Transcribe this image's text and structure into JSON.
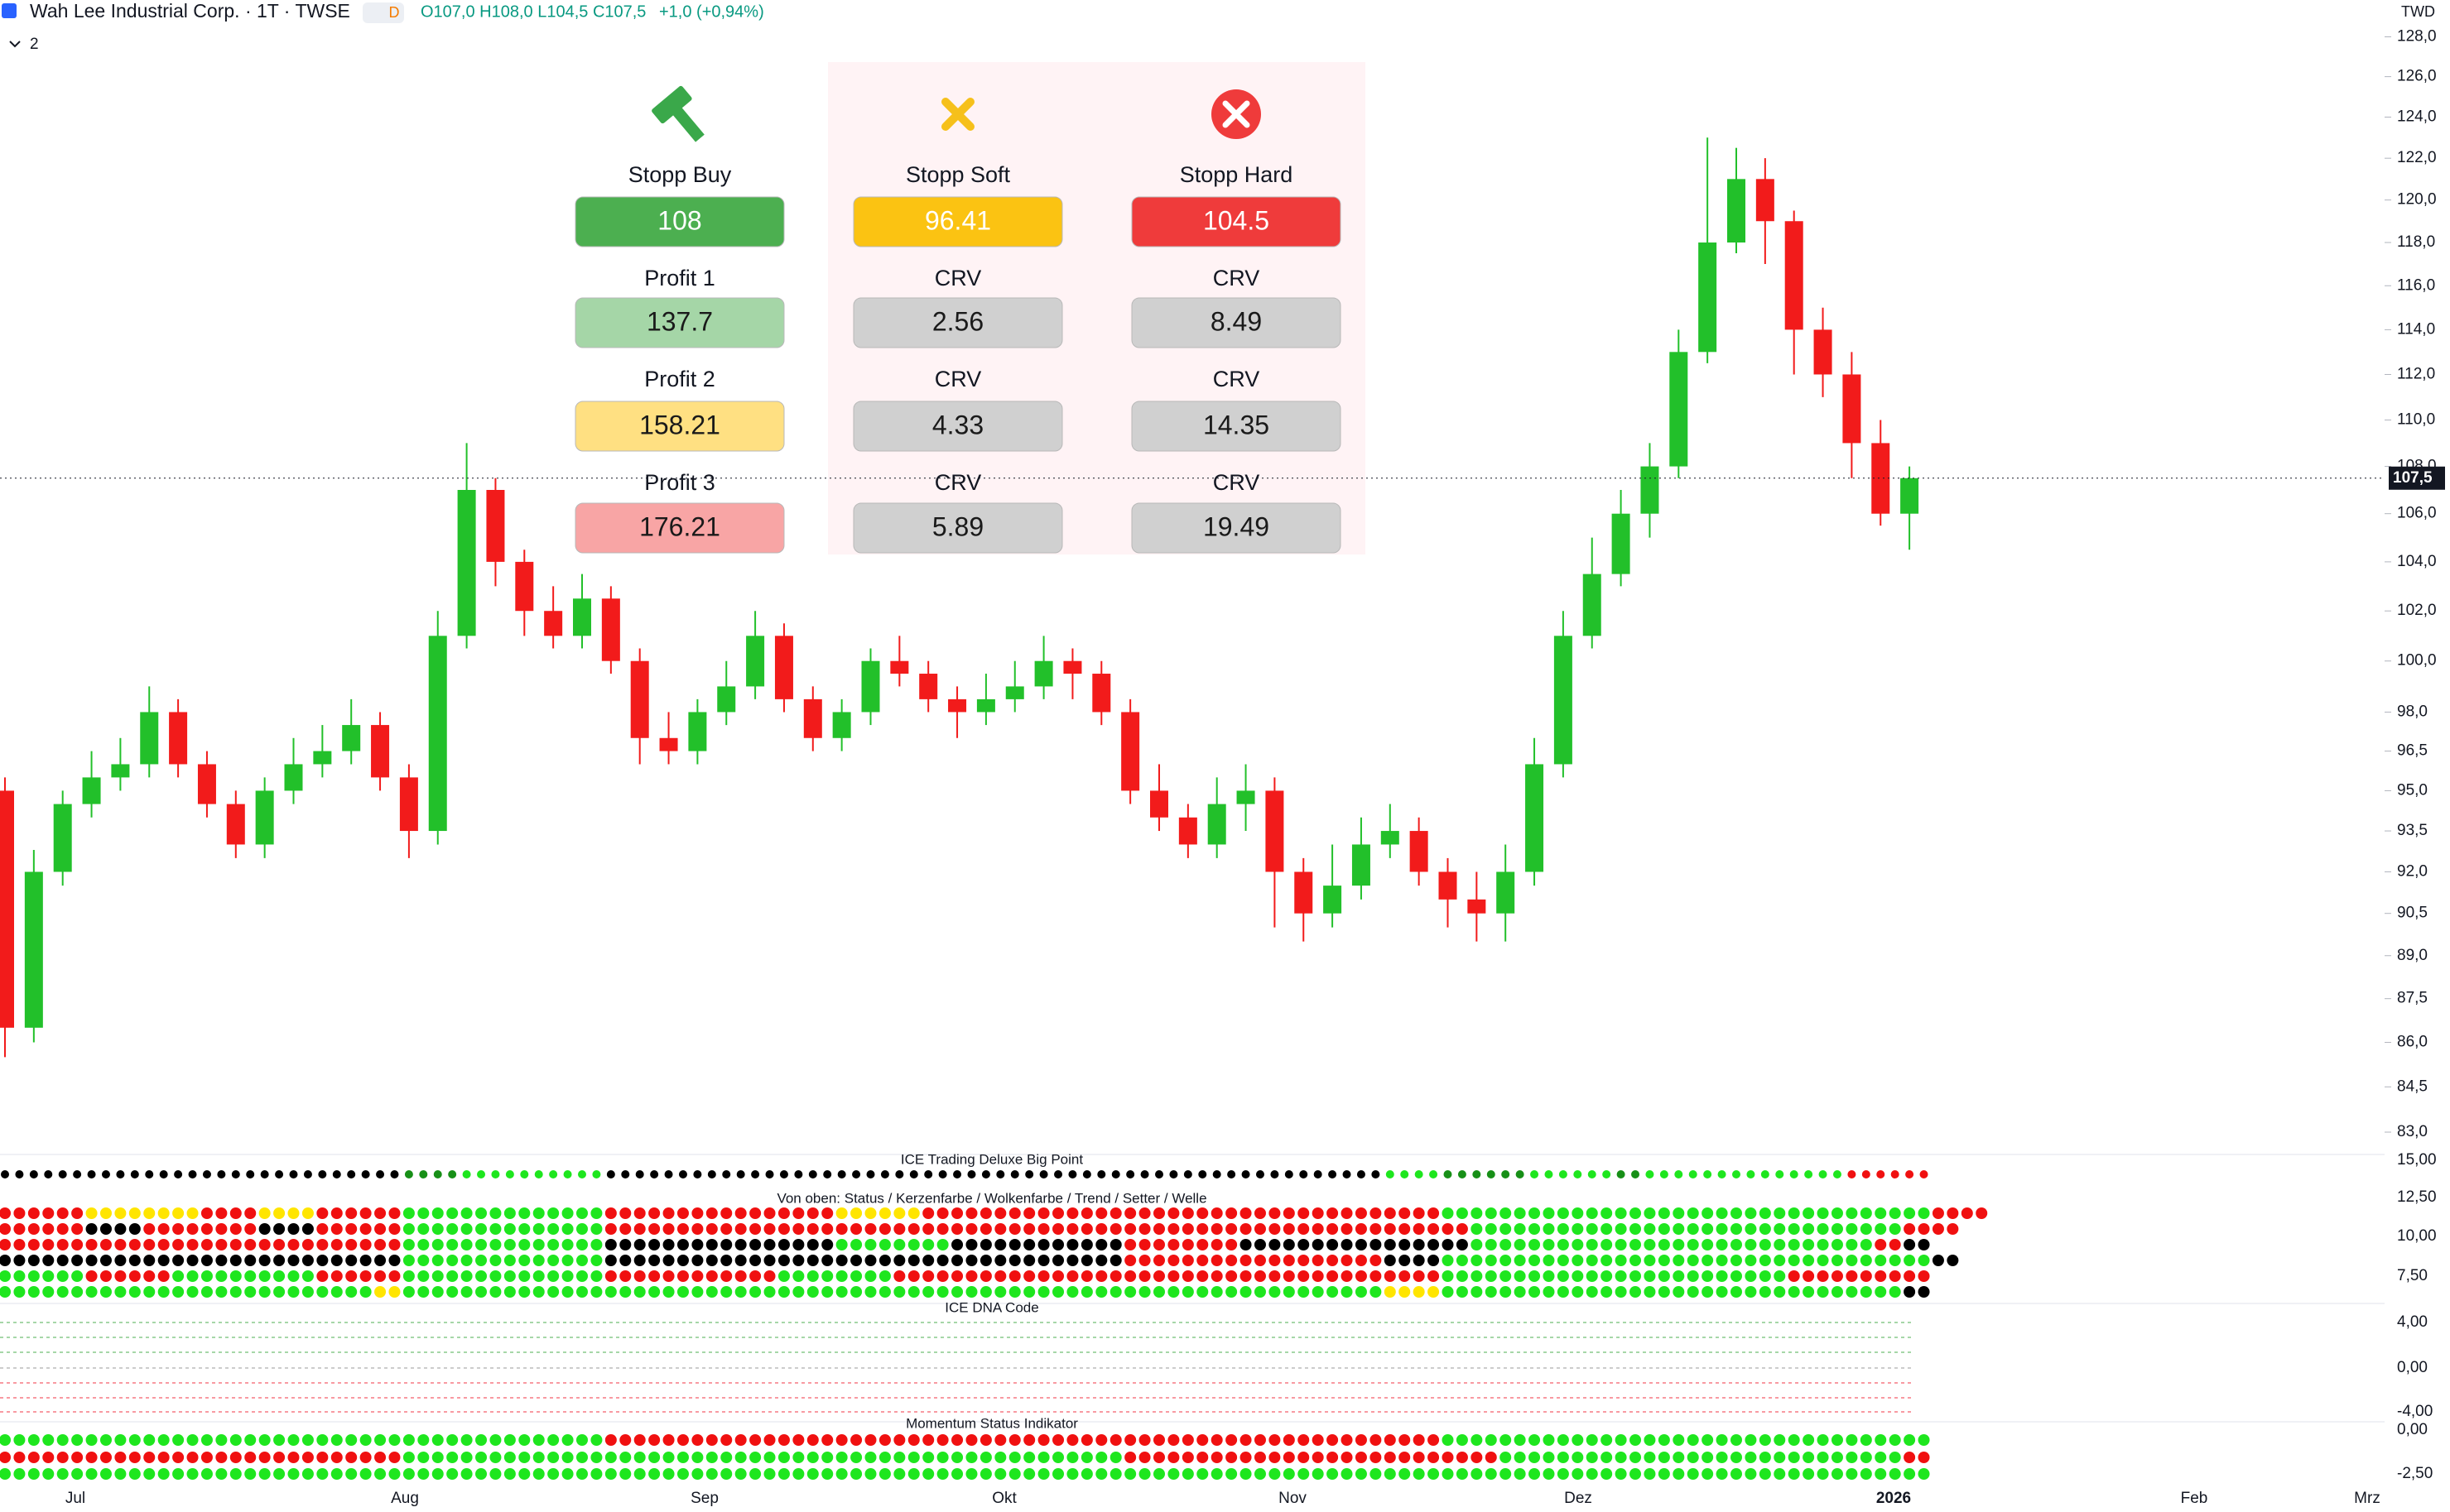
{
  "header": {
    "symbol": "Wah Lee Industrial Corp. · 1T · TWSE",
    "badge": "D",
    "ohlc": "O107,0 H108,0 L104,5 C107,5",
    "change": "+1,0 (+0,94%)",
    "currency": "TWD",
    "indicator_count": "2"
  },
  "panel": {
    "columns": [
      {
        "title": "Stopp Buy",
        "value": "108",
        "rows": [
          {
            "label": "Profit 1",
            "value": "137.7"
          },
          {
            "label": "Profit 2",
            "value": "158.21"
          },
          {
            "label": "Profit 3",
            "value": "176.21"
          }
        ]
      },
      {
        "title": "Stopp Soft",
        "value": "96.41",
        "rows": [
          {
            "label": "CRV",
            "value": "2.56"
          },
          {
            "label": "CRV",
            "value": "4.33"
          },
          {
            "label": "CRV",
            "value": "5.89"
          }
        ]
      },
      {
        "title": "Stopp Hard",
        "value": "104.5",
        "rows": [
          {
            "label": "CRV",
            "value": "8.49"
          },
          {
            "label": "CRV",
            "value": "14.35"
          },
          {
            "label": "CRV",
            "value": "19.49"
          }
        ]
      }
    ]
  },
  "chart_data": {
    "type": "candlestick",
    "log_scale": true,
    "up_color": "#22c02a",
    "down_color": "#f21b1b",
    "ylim": [
      83,
      128
    ],
    "yticks": [
      {
        "value": 128,
        "label": "128,0"
      },
      {
        "value": 126,
        "label": "126,0"
      },
      {
        "value": 124,
        "label": "124,0"
      },
      {
        "value": 122,
        "label": "122,0"
      },
      {
        "value": 120,
        "label": "120,0"
      },
      {
        "value": 118,
        "label": "118,0"
      },
      {
        "value": 116,
        "label": "116,0"
      },
      {
        "value": 114,
        "label": "114,0"
      },
      {
        "value": 112,
        "label": "112,0"
      },
      {
        "value": 110,
        "label": "110,0"
      },
      {
        "value": 108,
        "label": "108,0"
      },
      {
        "value": 106,
        "label": "106,0"
      },
      {
        "value": 104,
        "label": "104,0"
      },
      {
        "value": 102,
        "label": "102,0"
      },
      {
        "value": 100,
        "label": "100,0"
      },
      {
        "value": 98,
        "label": "98,0"
      },
      {
        "value": 96.5,
        "label": "96,5"
      },
      {
        "value": 95,
        "label": "95,0"
      },
      {
        "value": 93.5,
        "label": "93,5"
      },
      {
        "value": 92,
        "label": "92,0"
      },
      {
        "value": 90.5,
        "label": "90,5"
      },
      {
        "value": 89,
        "label": "89,0"
      },
      {
        "value": 87.5,
        "label": "87,5"
      },
      {
        "value": 86,
        "label": "86,0"
      },
      {
        "value": 84.5,
        "label": "84,5"
      },
      {
        "value": 83,
        "label": "83,0"
      }
    ],
    "last_price": 107.5,
    "last_price_label": "107,5",
    "x_labels": [
      "Jul",
      "Aug",
      "Sep",
      "Okt",
      "Nov",
      "Dez",
      "2026",
      "Feb",
      "Mrz"
    ],
    "candles": {
      "open": [
        95,
        86.5,
        92,
        94.5,
        95.5,
        96,
        98,
        96,
        94.5,
        93,
        95,
        96,
        96.5,
        97.5,
        95.5,
        93.5,
        101,
        107,
        104,
        102,
        101,
        102.5,
        100,
        97,
        96.5,
        98,
        99,
        101,
        98.5,
        97,
        98,
        100,
        99.5,
        98.5,
        98,
        98.5,
        99,
        100,
        99.5,
        98,
        95,
        94,
        93,
        94.5,
        95,
        92,
        90.5,
        91.5,
        93,
        93.5,
        92,
        91,
        90.5,
        92,
        96,
        101,
        103.5,
        106,
        108,
        113,
        118,
        121,
        119,
        114,
        112,
        109,
        106
      ],
      "high": [
        95.5,
        92.8,
        95,
        96.5,
        97,
        99,
        98.5,
        96.5,
        95,
        95.5,
        97,
        97.5,
        98.5,
        98,
        96,
        102,
        109,
        107.5,
        104.5,
        103,
        103.5,
        103,
        100.5,
        98,
        98.5,
        100,
        102,
        101.5,
        99,
        98.5,
        100.5,
        101,
        100,
        99,
        99.5,
        100,
        101,
        100.5,
        100,
        98.5,
        96,
        94.5,
        95.5,
        96,
        95.5,
        92.5,
        93,
        94,
        94.5,
        94,
        92.5,
        92,
        93,
        97,
        102,
        105,
        107,
        109,
        114,
        123,
        122.5,
        122,
        119.5,
        115,
        113,
        110,
        108
      ],
      "low": [
        85.5,
        86,
        91.5,
        94,
        95,
        95.5,
        95.5,
        94,
        92.5,
        92.5,
        94.5,
        95.5,
        96,
        95,
        92.5,
        93,
        100.5,
        103,
        101,
        100.5,
        100.5,
        99.5,
        96,
        96,
        96,
        97.5,
        98.5,
        98,
        96.5,
        96.5,
        97.5,
        99,
        98,
        97,
        97.5,
        98,
        98.5,
        98.5,
        97.5,
        94.5,
        93.5,
        92.5,
        92.5,
        93.5,
        90,
        89.5,
        90,
        91,
        92.5,
        91.5,
        90,
        89.5,
        89.5,
        91.5,
        95.5,
        100.5,
        103,
        105,
        107.5,
        112.5,
        117.5,
        117,
        112,
        111,
        107.5,
        105.5,
        104.5
      ],
      "close": [
        86.5,
        92,
        94.5,
        95.5,
        96,
        98,
        96,
        94.5,
        93,
        95,
        96,
        96.5,
        97.5,
        95.5,
        93.5,
        101,
        107,
        104,
        102,
        101,
        102.5,
        100,
        97,
        96.5,
        98,
        99,
        101,
        98.5,
        97,
        98,
        100,
        99.5,
        98.5,
        98,
        98.5,
        99,
        100,
        99.5,
        98,
        95,
        94,
        93,
        94.5,
        95,
        92,
        90.5,
        91.5,
        93,
        93.5,
        92,
        91,
        90.5,
        92,
        96,
        101,
        103.5,
        106,
        108,
        113,
        118,
        121,
        119,
        114,
        112,
        109,
        106,
        107.5
      ]
    }
  },
  "indicators": {
    "palette": {
      "G": "#1ee61e",
      "D": "#178f17",
      "R": "#f01010",
      "K": "#000000",
      "Y": "#ffe500"
    },
    "big_point": {
      "title": "ICE Trading Deluxe Big Point",
      "ytick": "15,00",
      "rows": [
        "KKKKKKKKKKKKKKDDGGGGGKKKKKKKKKKKKKKKKKKKKKKKKKKKGGDDDGGGDGGGGGGGRRR"
      ]
    },
    "status": {
      "title": "Von oben: Status / Kerzenfarbe / Wolkenfarbe / Trend / Setter / Welle",
      "yticks": [
        "12,50",
        "10,00",
        "7,50"
      ],
      "rows": [
        "RRRYYYYRRYYRRRGGGGGGGRRRRRRRRYYYRRRRRRRRRRRRRRRRRRGGGGGGGGGGGGGGGGGRR",
        "RRRKKRRRRKKRRRGGGGGGGRRRRRRRRRRRRRRRRRRRRRRRRRRRRRRGGGGGGGGGGGGGGGRR",
        "RRRRRRRRRRRRRRGGGGGGGKKKKKKKKGGGGKKKKKKRRRRKKKKKKKKGGGGGGGGGGGGGGRK",
        "KKKKKKKKKKKKKKGGGGGGGKKKKKKKKKKKKKKKKKKRRRRRRRRRKKGGGGGGGGGGGGGGGGGK",
        "GGGRRRGGGGGRRRGGGGGGGRRRRRRGGGGRRRRRRRRRRRRRRRRRRRGGGGGGGGGGGGRRRRR",
        "GGGGGGGGGGGGGYGGGGGGGGGGGGGGGGGGGGGGGGGGGGGGGGGGYYGGGGGGGGGGGGGGGGK"
      ]
    },
    "dna": {
      "title": "ICE DNA Code",
      "yticks": [
        "4,00",
        "0,00",
        "-4,00"
      ]
    },
    "momentum": {
      "title": "Momentum Status Indikator",
      "yticks": [
        "0,00",
        "-2,50"
      ],
      "rows": [
        "GGGGGGGGGGGGGGGGGGGGGRRRRRRRRRRRRRRRRRRRRRRRRRRRRRGGGGGGGGGGGGGGGGG",
        "RRRRRRRRRRRRRRGGGGGGGGGGGGGGGGGGGGGGGGGRRRRRRRRRRRRRGGGGGGGGGGGGGGR",
        "GGGGGGGGGGGGGGGGGGGGGGGGGGGGGGGGGGGGGGGGGGGGGGGGGGGGGGGGGGGGGGGGGGG"
      ]
    }
  }
}
